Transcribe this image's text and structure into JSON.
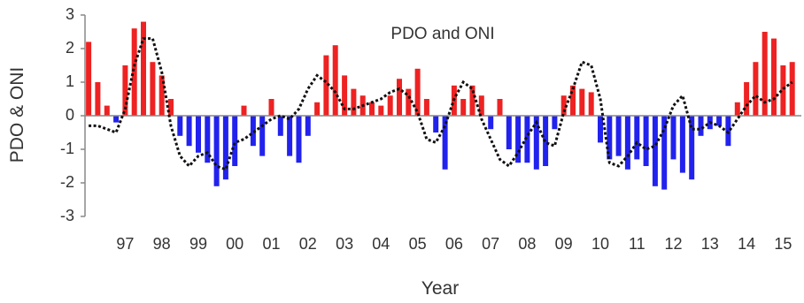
{
  "chart_data": {
    "type": "bar",
    "title": "PDO and ONI",
    "xlabel": "Year",
    "ylabel": "PDO & ONI",
    "ylim": [
      -3,
      3
    ],
    "yticks": [
      "3",
      "2",
      "1",
      "0",
      "-1",
      "-2",
      "-3"
    ],
    "xticks": [
      "97",
      "98",
      "99",
      "00",
      "01",
      "02",
      "03",
      "04",
      "05",
      "06",
      "07",
      "08",
      "09",
      "10",
      "11",
      "12",
      "13",
      "14",
      "15"
    ],
    "xlim": [
      1996.4,
      2016.0
    ],
    "grid": false,
    "legend": "none",
    "colors": {
      "positive": "#ee2222",
      "negative": "#2222ee",
      "line": "#111111",
      "axis": "#888888"
    },
    "series": [
      {
        "type": "bar",
        "x": [
          1996.5,
          1996.75,
          1997.0,
          1997.25,
          1997.5,
          1997.75,
          1998.0,
          1998.25,
          1998.5,
          1998.75,
          1999.0,
          1999.25,
          1999.5,
          1999.75,
          2000.0,
          2000.25,
          2000.5,
          2000.75,
          2001.0,
          2001.25,
          2001.5,
          2001.75,
          2002.0,
          2002.25,
          2002.5,
          2002.75,
          2003.0,
          2003.25,
          2003.5,
          2003.75,
          2004.0,
          2004.25,
          2004.5,
          2004.75,
          2005.0,
          2005.25,
          2005.5,
          2005.75,
          2006.0,
          2006.25,
          2006.5,
          2006.75,
          2007.0,
          2007.25,
          2007.5,
          2007.75,
          2008.0,
          2008.25,
          2008.5,
          2008.75,
          2009.0,
          2009.25,
          2009.5,
          2009.75,
          2010.0,
          2010.25,
          2010.5,
          2010.75,
          2011.0,
          2011.25,
          2011.5,
          2011.75,
          2012.0,
          2012.25,
          2012.5,
          2012.75,
          2013.0,
          2013.25,
          2013.5,
          2013.75,
          2014.0,
          2014.25,
          2014.5,
          2014.75,
          2015.0,
          2015.25,
          2015.5,
          2015.75
        ],
        "values": [
          2.2,
          1.0,
          0.3,
          -0.2,
          1.5,
          2.6,
          2.8,
          1.6,
          1.2,
          0.5,
          -0.6,
          -0.9,
          -1.1,
          -1.4,
          -2.1,
          -1.9,
          -1.5,
          0.3,
          -0.9,
          -1.2,
          0.5,
          -0.6,
          -1.2,
          -1.4,
          -0.6,
          0.4,
          1.8,
          2.1,
          1.2,
          0.8,
          0.6,
          0.4,
          0.3,
          0.6,
          1.1,
          0.8,
          1.4,
          0.5,
          -0.5,
          -1.6,
          0.9,
          0.5,
          0.9,
          0.6,
          -0.4,
          0.5,
          -1.0,
          -1.4,
          -1.4,
          -1.6,
          -1.5,
          -0.4,
          0.6,
          0.9,
          0.8,
          0.7,
          -0.8,
          -1.3,
          -1.2,
          -1.6,
          -1.3,
          -1.5,
          -2.1,
          -2.2,
          -1.3,
          -1.7,
          -1.9,
          -0.6,
          -0.4,
          -0.3,
          -0.9,
          0.4,
          1.0,
          1.6,
          2.5,
          2.3,
          1.5,
          1.6
        ]
      },
      {
        "type": "line",
        "x": [
          1996.5,
          1996.75,
          1997.0,
          1997.25,
          1997.5,
          1997.75,
          1998.0,
          1998.25,
          1998.5,
          1998.75,
          1999.0,
          1999.25,
          1999.5,
          1999.75,
          2000.0,
          2000.25,
          2000.5,
          2000.75,
          2001.0,
          2001.25,
          2001.5,
          2001.75,
          2002.0,
          2002.25,
          2002.5,
          2002.75,
          2003.0,
          2003.25,
          2003.5,
          2003.75,
          2004.0,
          2004.25,
          2004.5,
          2004.75,
          2005.0,
          2005.25,
          2005.5,
          2005.75,
          2006.0,
          2006.25,
          2006.5,
          2006.75,
          2007.0,
          2007.25,
          2007.5,
          2007.75,
          2008.0,
          2008.25,
          2008.5,
          2008.75,
          2009.0,
          2009.25,
          2009.5,
          2009.75,
          2010.0,
          2010.25,
          2010.5,
          2010.75,
          2011.0,
          2011.25,
          2011.5,
          2011.75,
          2012.0,
          2012.25,
          2012.5,
          2012.75,
          2013.0,
          2013.25,
          2013.5,
          2013.75,
          2014.0,
          2014.25,
          2014.5,
          2014.75,
          2015.0,
          2015.25,
          2015.5,
          2015.75
        ],
        "values": [
          -0.3,
          -0.3,
          -0.4,
          -0.5,
          0.2,
          1.5,
          2.3,
          2.3,
          1.3,
          -0.3,
          -1.2,
          -1.5,
          -1.2,
          -1.1,
          -1.5,
          -1.6,
          -0.8,
          -0.7,
          -0.5,
          -0.3,
          -0.1,
          0.0,
          -0.1,
          0.2,
          0.8,
          1.2,
          1.0,
          0.7,
          0.2,
          0.2,
          0.3,
          0.4,
          0.5,
          0.7,
          0.8,
          0.6,
          0.1,
          -0.7,
          -0.8,
          -0.3,
          0.5,
          1.0,
          0.8,
          -0.1,
          -0.7,
          -1.3,
          -1.5,
          -1.1,
          -0.6,
          -0.2,
          -0.8,
          -0.9,
          0.1,
          0.8,
          1.6,
          1.5,
          0.5,
          -1.4,
          -1.5,
          -1.2,
          -0.8,
          -1.0,
          -0.9,
          -0.4,
          0.3,
          0.6,
          -0.4,
          -0.4,
          -0.2,
          -0.3,
          -0.5,
          -0.1,
          0.3,
          0.6,
          0.4,
          0.5,
          0.8,
          1.0
        ]
      }
    ]
  }
}
